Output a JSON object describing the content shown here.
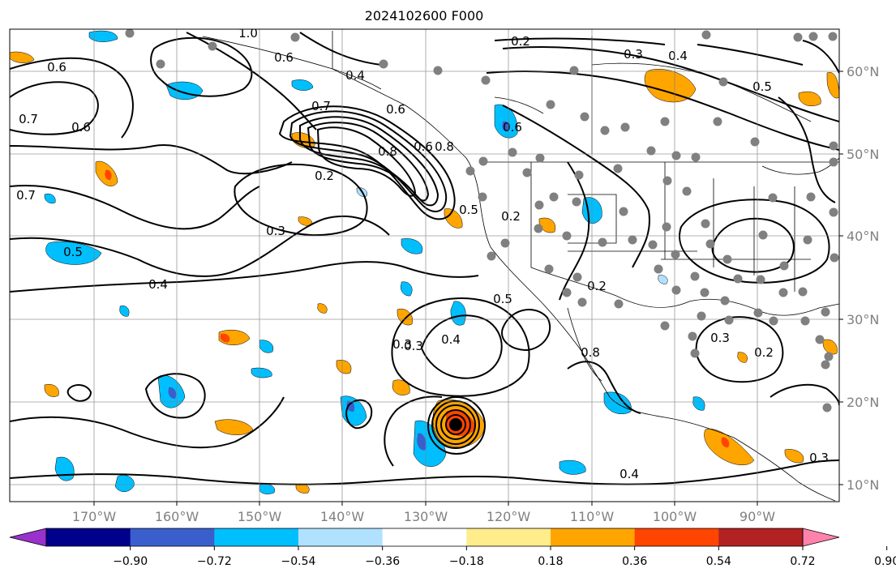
{
  "title": "2024102600 F000",
  "lon_labels": [
    "170°W",
    "160°W",
    "150°W",
    "140°W",
    "130°W",
    "120°W",
    "110°W",
    "100°W",
    "90°W"
  ],
  "lat_labels": [
    "60°N",
    "50°N",
    "40°N",
    "30°N",
    "20°N",
    "10°N"
  ],
  "colorbar": {
    "colors": [
      "#9932cc",
      "#00008b",
      "#3a5fcd",
      "#00bfff",
      "#b0e2ff",
      "#ffffff",
      "#ffec8b",
      "#ffa500",
      "#ff4500",
      "#b22222",
      "#ff82ab"
    ],
    "labels": [
      "−0.90",
      "−0.72",
      "−0.54",
      "−0.36",
      "−0.18",
      "0.18",
      "0.36",
      "0.54",
      "0.72",
      "0.90"
    ]
  },
  "contour_labels": [
    "0.2",
    "0.3",
    "0.4",
    "0.6",
    "0.5",
    "0.4",
    "0.7",
    "0.6",
    "0.8",
    "0.6",
    "0.7",
    "0.5",
    "0.4",
    "0.2",
    "0.3",
    "0.7",
    "0.8",
    "0.6",
    "0.5",
    "0.6",
    "0.4",
    "0.3",
    "0.2",
    "0.2",
    "0.5",
    "0.3",
    "0.4",
    "0.3",
    "0.2",
    "0.8",
    "0.3",
    "1.0",
    "0.6"
  ]
}
